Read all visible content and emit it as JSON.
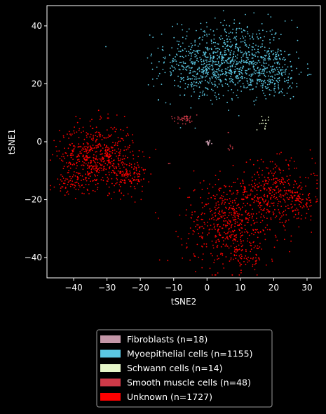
{
  "chart_data": {
    "type": "scatter",
    "title": "",
    "xlabel": "tSNE2",
    "ylabel": "tSNE1",
    "xlim": [
      -48,
      34
    ],
    "ylim": [
      -47,
      47
    ],
    "xticks": [
      -40,
      -30,
      -20,
      -10,
      0,
      10,
      20,
      30
    ],
    "yticks": [
      -40,
      -20,
      0,
      20,
      40
    ],
    "grid": false,
    "legend_position": "below",
    "background": "#000000",
    "series": [
      {
        "name": "Fibroblasts (n=18)",
        "color": "#c497a8",
        "count": 18,
        "clusters": [
          {
            "cx": 0.3,
            "cy": -0.3,
            "sx": 0.4,
            "sy": 0.5,
            "n": 18
          }
        ]
      },
      {
        "name": "Myoepithelial cells (n=1155)",
        "color": "#5bc8e3",
        "count": 1155,
        "clusters": [
          {
            "cx": 6.0,
            "cy": 30.0,
            "sx": 9.0,
            "sy": 6.0,
            "n": 520
          },
          {
            "cx": 0.0,
            "cy": 24.0,
            "sx": 7.0,
            "sy": 5.0,
            "n": 330
          },
          {
            "cx": 18.0,
            "cy": 24.0,
            "sx": 5.5,
            "sy": 4.5,
            "n": 305
          }
        ]
      },
      {
        "name": "Schwann cells (n=14)",
        "color": "#e5f5c8",
        "count": 14,
        "clusters": [
          {
            "cx": 17.0,
            "cy": 6.5,
            "sx": 1.0,
            "sy": 1.0,
            "n": 14
          }
        ]
      },
      {
        "name": "Smooth muscle cells (n=48)",
        "color": "#cf3a48",
        "count": 48,
        "clusters": [
          {
            "cx": -7.0,
            "cy": 8.0,
            "sx": 2.0,
            "sy": 0.8,
            "n": 38
          },
          {
            "cx": 7.0,
            "cy": -2.2,
            "sx": 0.4,
            "sy": 0.6,
            "n": 6
          },
          {
            "cx": 6.5,
            "cy": 3.6,
            "sx": 0.2,
            "sy": 0.2,
            "n": 2
          },
          {
            "cx": -11.5,
            "cy": -7.5,
            "sx": 0.3,
            "sy": 0.3,
            "n": 2
          }
        ]
      },
      {
        "name": "Unknown (n=1727)",
        "color": "#ff0000",
        "count": 1727,
        "clusters": [
          {
            "cx": -33.0,
            "cy": -5.0,
            "sx": 5.5,
            "sy": 5.5,
            "n": 560
          },
          {
            "cx": -23.0,
            "cy": -12.0,
            "sx": 2.5,
            "sy": 3.0,
            "n": 110
          },
          {
            "cx": -40.0,
            "cy": -14.0,
            "sx": 2.5,
            "sy": 2.0,
            "n": 60
          },
          {
            "cx": 7.0,
            "cy": -28.0,
            "sx": 7.0,
            "sy": 7.5,
            "n": 560
          },
          {
            "cx": 20.0,
            "cy": -17.0,
            "sx": 6.0,
            "sy": 5.0,
            "n": 320
          },
          {
            "cx": 28.0,
            "cy": -21.0,
            "sx": 2.0,
            "sy": 3.0,
            "n": 70
          },
          {
            "cx": 11.0,
            "cy": -40.0,
            "sx": 3.0,
            "sy": 2.0,
            "n": 47
          }
        ]
      }
    ]
  }
}
